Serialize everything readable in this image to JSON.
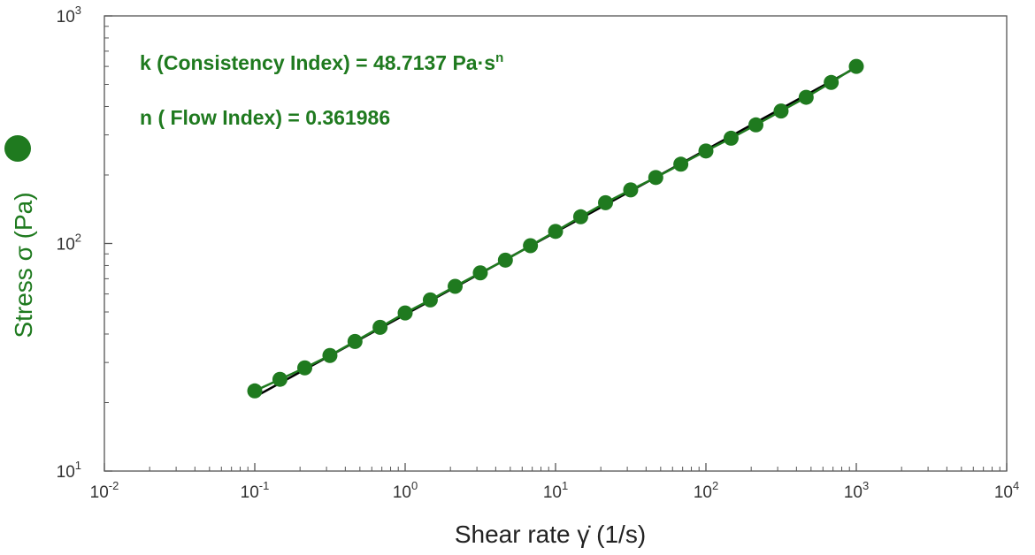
{
  "chart_data": {
    "type": "scatter",
    "title": "",
    "xlabel": "Shear rate γ̇  (1/s)",
    "ylabel": "Stress σ  (Pa)",
    "x_scale": "log",
    "y_scale": "log",
    "xlim": [
      0.01,
      10000
    ],
    "ylim": [
      10,
      1000
    ],
    "x_ticks": [
      {
        "base": "10",
        "exp": "-2",
        "value": 0.01
      },
      {
        "base": "10",
        "exp": "-1",
        "value": 0.1
      },
      {
        "base": "10",
        "exp": "0",
        "value": 1
      },
      {
        "base": "10",
        "exp": "1",
        "value": 10
      },
      {
        "base": "10",
        "exp": "2",
        "value": 100
      },
      {
        "base": "10",
        "exp": "3",
        "value": 1000
      },
      {
        "base": "10",
        "exp": "4",
        "value": 10000
      }
    ],
    "y_ticks": [
      {
        "base": "10",
        "exp": "1",
        "value": 10
      },
      {
        "base": "10",
        "exp": "2",
        "value": 100
      },
      {
        "base": "10",
        "exp": "3",
        "value": 1000
      }
    ],
    "grid": false,
    "marker_color": "#1f7a1f",
    "fit_color": "#000000",
    "series": [
      {
        "x": [
          0.1,
          0.147,
          0.215,
          0.316,
          0.464,
          0.681,
          1,
          1.47,
          2.15,
          3.16,
          4.64,
          6.81,
          10,
          14.7,
          21.5,
          31.6,
          46.4,
          68.1,
          100,
          147,
          215,
          316,
          464,
          681,
          1000
        ],
        "y": [
          22.5,
          25.3,
          28.4,
          32.2,
          37.1,
          42.8,
          49.5,
          56.5,
          64.8,
          74.3,
          84.5,
          97.8,
          113,
          131,
          151,
          172,
          195,
          223,
          255,
          290,
          332,
          382,
          439,
          510,
          600
        ]
      }
    ],
    "fit": {
      "k": 48.7137,
      "n": 0.361986,
      "x_range": [
        0.1,
        1000
      ]
    },
    "annotations": [
      {
        "text": "k (Consistency Index) = 48.7137 Pa·s",
        "sup": "n"
      },
      {
        "text": "n ( Flow Index) = 0.361986",
        "sup": ""
      }
    ]
  }
}
